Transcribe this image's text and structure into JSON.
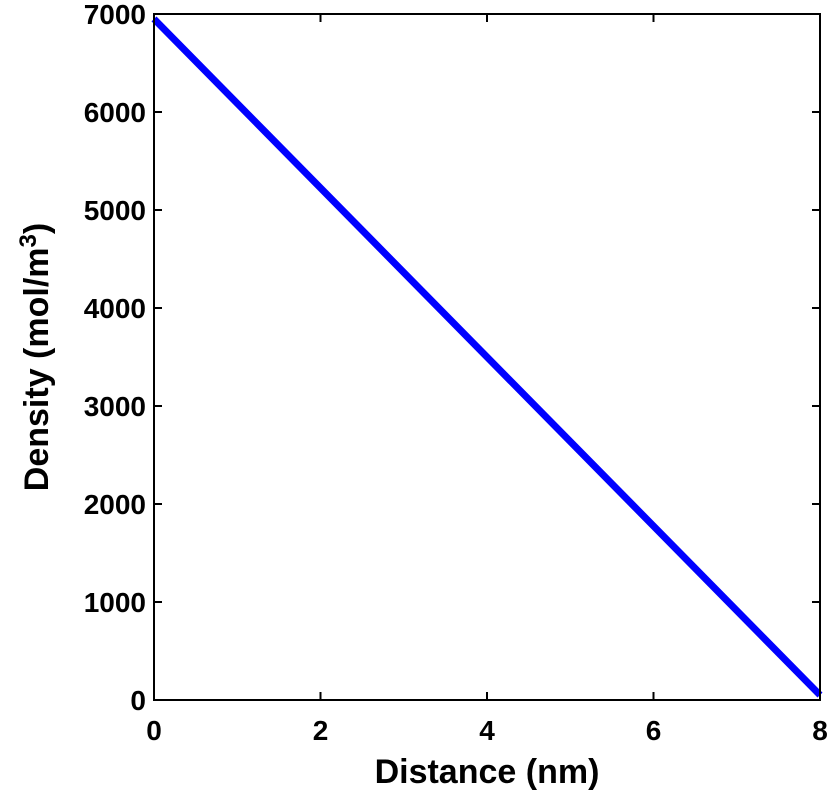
{
  "chart_data": {
    "type": "line",
    "xlabel": "Distance (nm)",
    "ylabel_base": "Density (mol/m",
    "ylabel_sup": "3",
    "ylabel_end": ")",
    "xlim": [
      0,
      8
    ],
    "ylim": [
      0,
      7000
    ],
    "xticks": [
      0,
      2,
      4,
      6,
      8
    ],
    "yticks": [
      0,
      1000,
      2000,
      3000,
      4000,
      5000,
      6000,
      7000
    ],
    "grid": false,
    "series": [
      {
        "x": [
          0,
          8
        ],
        "y": [
          6950,
          50
        ],
        "color": "#0000ff"
      }
    ]
  }
}
